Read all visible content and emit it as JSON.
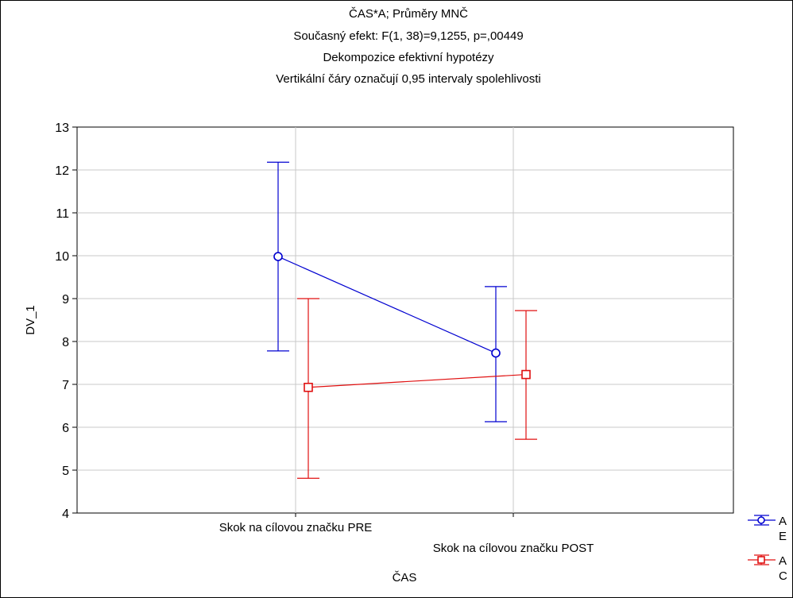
{
  "chart_data": {
    "type": "line",
    "title": "ČAS*A; Průměry MNČ",
    "subtitle": [
      "Současný efekt: F(1, 38)=9,1255, p=,00449",
      "Dekompozice efektivní hypotézy",
      "Vertikální čáry označují 0,95 intervaly spolehlivosti"
    ],
    "xlabel": "ČAS",
    "ylabel": "DV_1",
    "categories": [
      "Skok na cílovou značku PRE",
      "Skok na cílovou značku POST"
    ],
    "ylim": [
      4,
      13
    ],
    "yticks": [
      "4",
      "5",
      "6",
      "7",
      "8",
      "9",
      "10",
      "11",
      "12",
      "13"
    ],
    "grid": true,
    "legend_position": "bottom-right",
    "series": [
      {
        "name": "A E",
        "legend_lines": [
          "A",
          "E"
        ],
        "marker": "circle",
        "color": "#0000d0",
        "values": [
          9.98,
          7.73
        ],
        "lower": [
          7.78,
          6.13
        ],
        "upper": [
          12.18,
          9.28
        ]
      },
      {
        "name": "A C",
        "legend_lines": [
          "A",
          "C"
        ],
        "marker": "square",
        "color": "#e01010",
        "values": [
          6.93,
          7.23
        ],
        "lower": [
          4.81,
          5.72
        ],
        "upper": [
          9.0,
          8.72
        ]
      }
    ]
  }
}
